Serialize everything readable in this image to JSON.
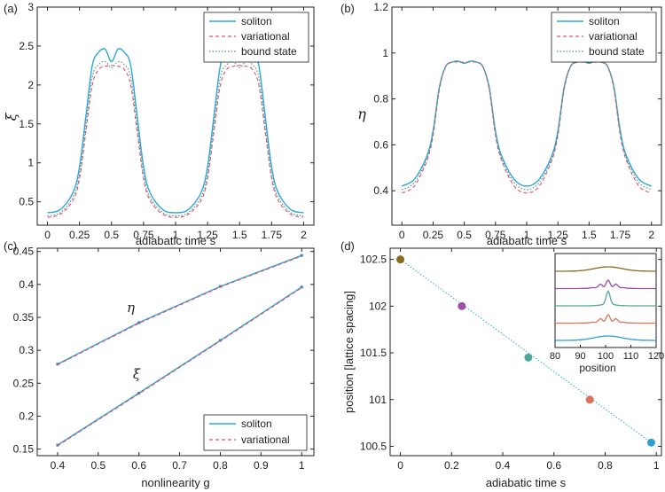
{
  "colors": {
    "soliton": "#2aa8d8",
    "variational": "#e0506a",
    "bound_state": "#5a8a80",
    "marker_c": "#3d7fc4"
  },
  "chart_data": [
    {
      "panel_label": "(a)",
      "type": "line",
      "xlabel": "adiabatic time s",
      "ylabel": "ξ",
      "xlim": [
        -0.08,
        2.08
      ],
      "ylim": [
        0.2,
        3.0
      ],
      "xticks": [
        0,
        0.25,
        0.5,
        0.75,
        1,
        1.25,
        1.5,
        1.75,
        2
      ],
      "xtick_labels": [
        "0",
        "0.25",
        "0.5",
        "0.75",
        "1",
        "1.25",
        "1.5",
        "1.75",
        "2"
      ],
      "yticks": [
        0.5,
        1,
        1.5,
        2,
        2.5,
        3
      ],
      "ytick_labels": [
        "0.5",
        "1",
        "1.5",
        "2",
        "2.5",
        "3"
      ],
      "legend": {
        "position": "top-right",
        "entries": [
          "soliton",
          "variational",
          "bound state"
        ]
      },
      "x": [
        0,
        0.1,
        0.2,
        0.25,
        0.3,
        0.35,
        0.4,
        0.45,
        0.5,
        0.55,
        0.6,
        0.65,
        0.7,
        0.75,
        0.8,
        0.9,
        1.0
      ],
      "series": [
        {
          "name": "soliton",
          "style": "solid",
          "values": [
            0.36,
            0.4,
            0.62,
            0.95,
            1.6,
            2.25,
            2.42,
            2.46,
            2.3,
            2.46,
            2.42,
            2.25,
            1.6,
            0.95,
            0.62,
            0.4,
            0.36
          ]
        },
        {
          "name": "variational",
          "style": "dashed",
          "values": [
            0.3,
            0.34,
            0.52,
            0.8,
            1.4,
            2.0,
            2.2,
            2.24,
            2.25,
            2.24,
            2.2,
            2.0,
            1.4,
            0.8,
            0.52,
            0.34,
            0.3
          ]
        },
        {
          "name": "bound state",
          "style": "dotted",
          "values": [
            0.32,
            0.36,
            0.56,
            0.85,
            1.48,
            2.1,
            2.26,
            2.3,
            2.22,
            2.3,
            2.26,
            2.1,
            1.48,
            0.85,
            0.56,
            0.36,
            0.32
          ]
        }
      ]
    },
    {
      "panel_label": "(b)",
      "type": "line",
      "xlabel": "adiabatic time s",
      "ylabel": "η",
      "xlim": [
        -0.08,
        2.08
      ],
      "ylim": [
        0.25,
        1.2
      ],
      "xticks": [
        0,
        0.25,
        0.5,
        0.75,
        1,
        1.25,
        1.5,
        1.75,
        2
      ],
      "xtick_labels": [
        "0",
        "0.25",
        "0.5",
        "0.75",
        "1",
        "1.25",
        "1.5",
        "1.75",
        "2"
      ],
      "yticks": [
        0.4,
        0.6,
        0.8,
        1,
        1.2
      ],
      "ytick_labels": [
        "0.4",
        "0.6",
        "0.8",
        "1",
        "1.2"
      ],
      "legend": {
        "position": "top-right",
        "entries": [
          "soliton",
          "variational",
          "bound state"
        ]
      },
      "x": [
        0,
        0.1,
        0.2,
        0.25,
        0.3,
        0.35,
        0.4,
        0.45,
        0.5,
        0.55,
        0.6,
        0.65,
        0.7,
        0.75,
        0.8,
        0.9,
        1.0
      ],
      "series": [
        {
          "name": "soliton",
          "style": "solid",
          "values": [
            0.42,
            0.45,
            0.55,
            0.66,
            0.85,
            0.94,
            0.96,
            0.965,
            0.955,
            0.965,
            0.96,
            0.94,
            0.85,
            0.66,
            0.55,
            0.45,
            0.42
          ]
        },
        {
          "name": "variational",
          "style": "dashed",
          "values": [
            0.39,
            0.42,
            0.53,
            0.64,
            0.84,
            0.94,
            0.96,
            0.96,
            0.96,
            0.96,
            0.96,
            0.94,
            0.84,
            0.64,
            0.53,
            0.42,
            0.39
          ]
        },
        {
          "name": "bound state",
          "style": "dotted",
          "values": [
            0.405,
            0.435,
            0.54,
            0.65,
            0.845,
            0.94,
            0.96,
            0.962,
            0.958,
            0.962,
            0.96,
            0.94,
            0.845,
            0.65,
            0.54,
            0.435,
            0.405
          ]
        }
      ]
    },
    {
      "panel_label": "(c)",
      "type": "line",
      "xlabel": "nonlinearity g",
      "xlim": [
        0.35,
        1.03
      ],
      "ylim": [
        0.14,
        0.455
      ],
      "xticks": [
        0.4,
        0.5,
        0.6,
        0.7,
        0.8,
        0.9,
        1
      ],
      "xtick_labels": [
        "0.4",
        "0.5",
        "0.6",
        "0.7",
        "0.8",
        "0.9",
        "1"
      ],
      "yticks": [
        0.15,
        0.2,
        0.25,
        0.3,
        0.35,
        0.4,
        0.45
      ],
      "ytick_labels": [
        "0.15",
        "0.2",
        "0.25",
        "0.3",
        "0.35",
        "0.4",
        "0.45"
      ],
      "legend": {
        "position": "bottom-right",
        "entries": [
          "soliton",
          "variational"
        ]
      },
      "annotations": [
        {
          "text": "η",
          "x": 0.57,
          "y": 0.358
        },
        {
          "text": "ξ",
          "x": 0.585,
          "y": 0.257
        }
      ],
      "x": [
        0.4,
        0.6,
        0.8,
        1.0
      ],
      "series": [
        {
          "name": "soliton",
          "curve": "η",
          "style": "solid",
          "values": [
            0.279,
            0.342,
            0.397,
            0.444
          ]
        },
        {
          "name": "variational",
          "curve": "η",
          "style": "dashed",
          "values": [
            0.278,
            0.341,
            0.396,
            0.443
          ]
        },
        {
          "name": "soliton",
          "curve": "ξ",
          "style": "solid",
          "values": [
            0.156,
            0.235,
            0.315,
            0.396
          ]
        },
        {
          "name": "variational",
          "curve": "ξ",
          "style": "dashed",
          "values": [
            0.155,
            0.234,
            0.314,
            0.395
          ]
        }
      ]
    },
    {
      "panel_label": "(d)",
      "type": "scatter",
      "xlabel": "adiabatic time s",
      "ylabel": "position [lattice spacing]",
      "xlim": [
        -0.04,
        1.02
      ],
      "ylim": [
        100.4,
        102.62
      ],
      "xticks": [
        0,
        0.2,
        0.4,
        0.6,
        0.8,
        1
      ],
      "xtick_labels": [
        "0",
        "0.2",
        "0.4",
        "0.6",
        "0.8",
        "1"
      ],
      "yticks": [
        100.5,
        101,
        101.5,
        102,
        102.5
      ],
      "ytick_labels": [
        "100.5",
        "101",
        "101.5",
        "102",
        "102.5"
      ],
      "points": [
        {
          "x": 0,
          "y": 102.5,
          "color": "#8a6a20"
        },
        {
          "x": 0.24,
          "y": 102.0,
          "color": "#a04fa8"
        },
        {
          "x": 0.5,
          "y": 101.45,
          "color": "#4fa89a"
        },
        {
          "x": 0.74,
          "y": 101.0,
          "color": "#e0725c"
        },
        {
          "x": 0.98,
          "y": 100.54,
          "color": "#2a9fd6"
        }
      ],
      "fit_line": {
        "x": [
          0,
          0.98
        ],
        "y": [
          102.5,
          100.54
        ]
      },
      "inset": {
        "xlabel": "position",
        "xlim": [
          80,
          120
        ],
        "xticks": [
          80,
          90,
          100,
          110,
          120
        ],
        "xtick_labels": [
          "80",
          "90",
          "100",
          "110",
          "120"
        ],
        "profiles": [
          {
            "color": "#8a6a20",
            "shape": "broad"
          },
          {
            "color": "#a04fa8",
            "shape": "oscillating"
          },
          {
            "color": "#4fa89a",
            "shape": "narrow"
          },
          {
            "color": "#e0725c",
            "shape": "oscillating"
          },
          {
            "color": "#2a9fd6",
            "shape": "broad"
          }
        ]
      }
    }
  ]
}
